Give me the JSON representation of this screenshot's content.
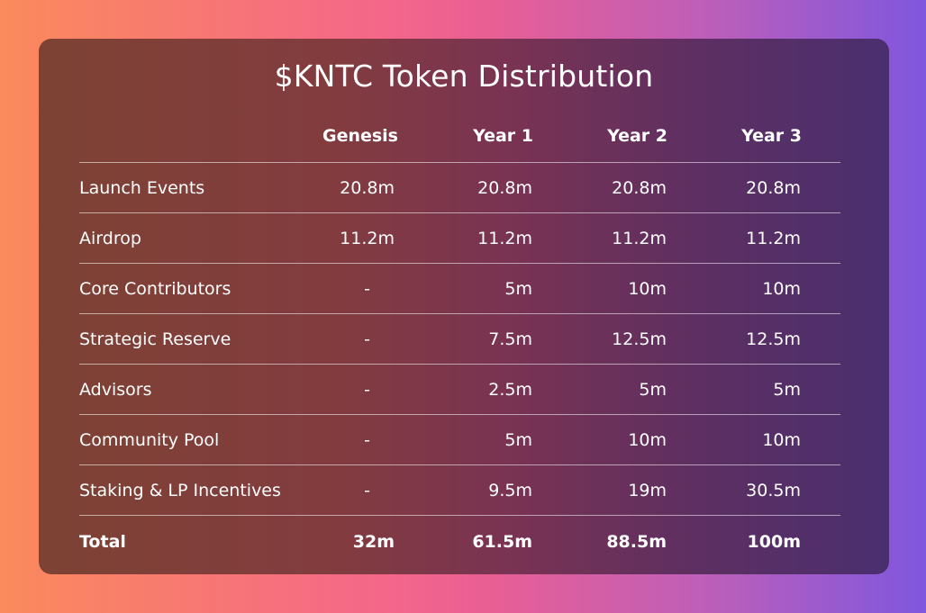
{
  "title": "$KNTC Token Distribution",
  "table": {
    "headers": [
      "",
      "Genesis",
      "Year 1",
      "Year 2",
      "Year 3"
    ],
    "rows": [
      {
        "label": "Launch Events",
        "values": [
          "20.8m",
          "20.8m",
          "20.8m",
          "20.8m"
        ]
      },
      {
        "label": "Airdrop",
        "values": [
          "11.2m",
          "11.2m",
          "11.2m",
          "11.2m"
        ]
      },
      {
        "label": "Core Contributors",
        "values": [
          "-",
          "5m",
          "10m",
          "10m"
        ]
      },
      {
        "label": "Strategic Reserve",
        "values": [
          "-",
          "7.5m",
          "12.5m",
          "12.5m"
        ]
      },
      {
        "label": "Advisors",
        "values": [
          "-",
          "2.5m",
          "5m",
          "5m"
        ]
      },
      {
        "label": "Community Pool",
        "values": [
          "-",
          "5m",
          "10m",
          "10m"
        ]
      },
      {
        "label": "Staking & LP Incentives",
        "values": [
          "-",
          "9.5m",
          "19m",
          "30.5m"
        ]
      }
    ],
    "total": {
      "label": "Total",
      "values": [
        "32m",
        "61.5m",
        "88.5m",
        "100m"
      ]
    }
  },
  "colors": {
    "background_left": "#fb8a5c",
    "background_mid": "#ea5f93",
    "background_right": "#7f57de",
    "card_left": "#7e4234",
    "card_right": "#4a2f6f",
    "text": "#ffffff"
  }
}
